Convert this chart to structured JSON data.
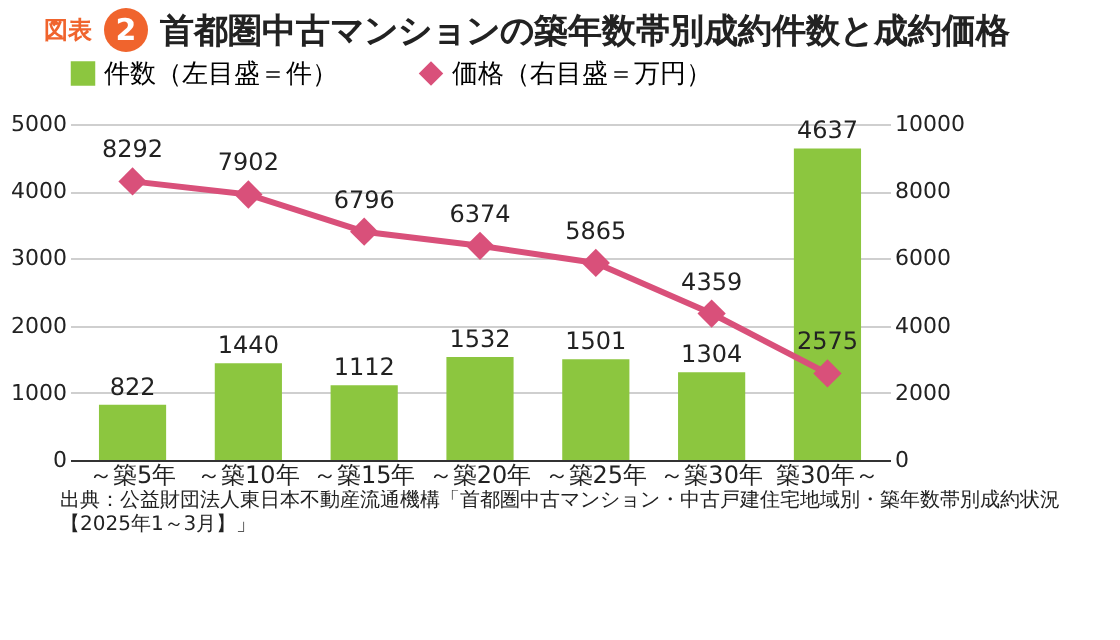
{
  "chart_data": {
    "type": "bar",
    "title": "首都圏中古マンションの築年数帯別成約件数と成約価格",
    "categories": [
      "～築5年",
      "～築10年",
      "～築15年",
      "～築20年",
      "～築25年",
      "～築30年",
      "築30年～"
    ],
    "series": [
      {
        "name": "件数（左目盛＝件）",
        "color": "#8cc63f",
        "values": [
          822,
          1440,
          1112,
          1532,
          1501,
          1304,
          4637
        ]
      },
      {
        "name": "価格（右目盛＝万円）",
        "type": "line",
        "axis": "y2",
        "color": "#d9507a",
        "values": [
          8292,
          7902,
          6796,
          6374,
          5865,
          4359,
          2575
        ]
      }
    ],
    "ylim": [
      0,
      5000
    ],
    "yticks": [
      0,
      1000,
      2000,
      3000,
      4000,
      5000
    ],
    "y2lim": [
      0,
      10000
    ],
    "y2ticks": [
      0,
      2000,
      4000,
      6000,
      8000,
      10000
    ],
    "grid": "y",
    "legend": "top",
    "marker": "diamond",
    "data_labels": true,
    "annotations": [
      "図表",
      "2",
      "出典：公益財団法人東日本不動産流通機構「首都圏中古マンション・中古戸建住宅地域別・築年数帯別成約状況【2025年1～3月】」"
    ]
  }
}
